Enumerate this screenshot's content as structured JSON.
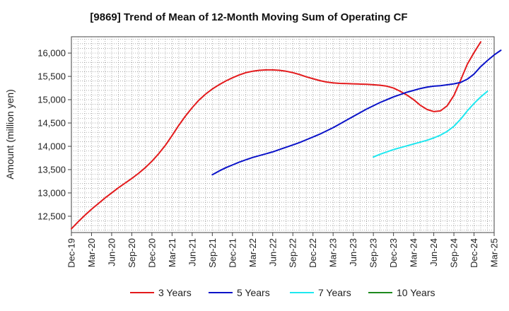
{
  "chart_data": {
    "type": "line",
    "title": "[9869]  Trend of Mean of 12-Month Moving Sum of Operating CF",
    "xlabel": "",
    "ylabel": "Amount (million yen)",
    "ylim": [
      12150,
      16350
    ],
    "y_ticks": [
      12500,
      13000,
      13500,
      14000,
      14500,
      15000,
      15500,
      16000
    ],
    "y_tick_labels": [
      "12,500",
      "13,000",
      "13,500",
      "14,000",
      "14,500",
      "15,000",
      "15,500",
      "16,000"
    ],
    "x_tick_labels": [
      "Dec-19",
      "Mar-20",
      "Jun-20",
      "Sep-20",
      "Dec-20",
      "Mar-21",
      "Jun-21",
      "Sep-21",
      "Dec-21",
      "Mar-22",
      "Jun-22",
      "Sep-22",
      "Dec-22",
      "Mar-23",
      "Jun-23",
      "Sep-23",
      "Dec-23",
      "Mar-24",
      "Jun-24",
      "Sep-24",
      "Dec-24",
      "Mar-25"
    ],
    "x_start": "Dec-19",
    "x_step_months": 1,
    "grid": true,
    "legend_position": "bottom",
    "series": [
      {
        "name": "3 Years",
        "color": "#e31a1c",
        "start_index": 0,
        "values": [
          12230,
          12380,
          12520,
          12650,
          12770,
          12890,
          13000,
          13110,
          13210,
          13310,
          13420,
          13540,
          13680,
          13840,
          14020,
          14230,
          14450,
          14650,
          14830,
          14990,
          15120,
          15230,
          15320,
          15400,
          15470,
          15530,
          15580,
          15610,
          15630,
          15640,
          15640,
          15630,
          15610,
          15580,
          15540,
          15490,
          15450,
          15410,
          15380,
          15360,
          15350,
          15345,
          15340,
          15335,
          15330,
          15320,
          15310,
          15290,
          15250,
          15180,
          15100,
          15000,
          14880,
          14790,
          14745,
          14760,
          14870,
          15090,
          15420,
          15760,
          16010,
          16240
        ]
      },
      {
        "name": "5 Years",
        "color": "#0a12c8",
        "start_index": 21,
        "values": [
          13390,
          13470,
          13540,
          13600,
          13660,
          13710,
          13760,
          13800,
          13840,
          13880,
          13930,
          13980,
          14030,
          14080,
          14140,
          14200,
          14260,
          14330,
          14400,
          14480,
          14560,
          14640,
          14720,
          14800,
          14870,
          14940,
          15000,
          15060,
          15110,
          15160,
          15200,
          15240,
          15270,
          15290,
          15300,
          15320,
          15340,
          15370,
          15440,
          15550,
          15710,
          15840,
          15960,
          16060
        ]
      },
      {
        "name": "7 Years",
        "color": "#1ee8f0",
        "start_index": 45,
        "values": [
          13770,
          13830,
          13880,
          13930,
          13970,
          14010,
          14050,
          14090,
          14130,
          14180,
          14240,
          14320,
          14430,
          14580,
          14760,
          14920,
          15060,
          15180
        ]
      },
      {
        "name": "10 Years",
        "color": "#1e8a1e",
        "start_index": 0,
        "values": []
      }
    ]
  }
}
